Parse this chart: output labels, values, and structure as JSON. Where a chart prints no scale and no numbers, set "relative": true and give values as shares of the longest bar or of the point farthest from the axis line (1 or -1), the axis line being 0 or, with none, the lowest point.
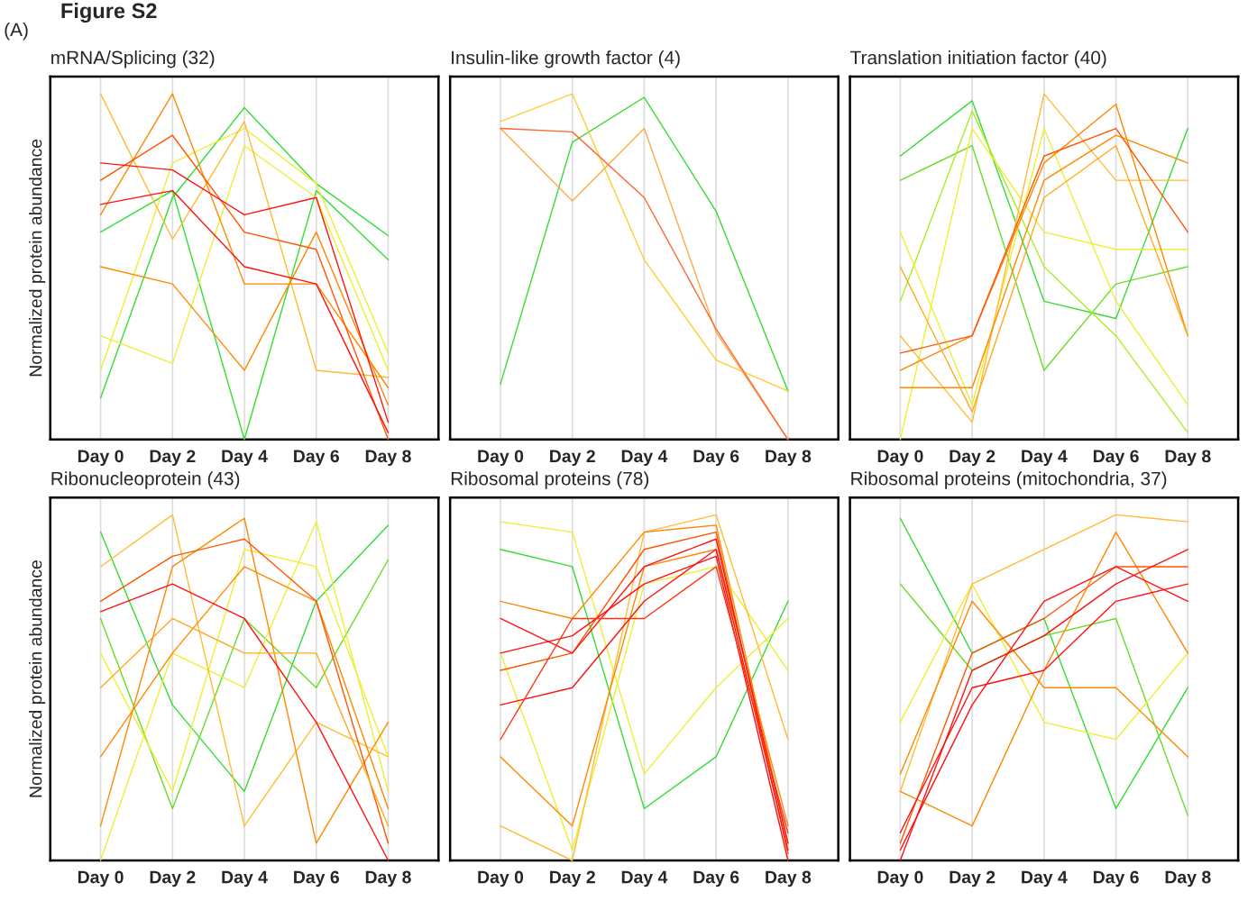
{
  "chart_data": [
    {
      "type": "line",
      "title": "mRNA/Splicing (32)",
      "ylabel": "Normalized protein abundance",
      "annotations": [
        "Figure S2",
        "(A)"
      ],
      "categories": [
        "Day 0",
        "Day 2",
        "Day 4",
        "Day 6",
        "Day 8"
      ],
      "relative": true,
      "grid": "x",
      "tick_labels": "x",
      "series": [
        {
          "color": "#33dd33",
          "values": [
            0.12,
            0.7,
            0.96,
            0.74,
            0.59
          ]
        },
        {
          "color": "#33dd33",
          "values": [
            0.6,
            0.72,
            0.0,
            0.72,
            0.52
          ]
        },
        {
          "color": "#eeee33",
          "values": [
            0.2,
            0.8,
            0.9,
            0.74,
            0.25
          ]
        },
        {
          "color": "#eeee33",
          "values": [
            0.3,
            0.22,
            0.85,
            0.7,
            0.2
          ]
        },
        {
          "color": "#ffbb33",
          "values": [
            1.0,
            0.58,
            0.92,
            0.2,
            0.18
          ]
        },
        {
          "color": "#ff8800",
          "values": [
            0.65,
            1.0,
            0.45,
            0.45,
            0.15
          ]
        },
        {
          "color": "#ff8800",
          "values": [
            0.5,
            0.45,
            0.2,
            0.6,
            0.1
          ]
        },
        {
          "color": "#ff5500",
          "values": [
            0.75,
            0.88,
            0.6,
            0.55,
            0.0
          ]
        },
        {
          "color": "#ff1111",
          "values": [
            0.8,
            0.78,
            0.65,
            0.7,
            0.05
          ]
        },
        {
          "color": "#ff1111",
          "values": [
            0.68,
            0.72,
            0.5,
            0.45,
            0.02
          ]
        }
      ]
    },
    {
      "type": "line",
      "title": "Insulin-like growth factor (4)",
      "categories": [
        "Day 0",
        "Day 2",
        "Day 4",
        "Day 6",
        "Day 8"
      ],
      "relative": true,
      "grid": "x",
      "tick_labels": "x",
      "series": [
        {
          "color": "#33dd33",
          "values": [
            0.16,
            0.86,
            0.99,
            0.66,
            0.14
          ]
        },
        {
          "color": "#ffcc33",
          "values": [
            0.92,
            1.0,
            0.52,
            0.23,
            0.14
          ]
        },
        {
          "color": "#ffaa44",
          "values": [
            0.9,
            0.69,
            0.9,
            0.31,
            0.0
          ]
        },
        {
          "color": "#ff6633",
          "values": [
            0.9,
            0.89,
            0.7,
            0.32,
            0.0
          ]
        }
      ]
    },
    {
      "type": "line",
      "title": "Translation initiation factor (40)",
      "categories": [
        "Day 0",
        "Day 2",
        "Day 4",
        "Day 6",
        "Day 8"
      ],
      "relative": true,
      "grid": "x",
      "tick_labels": "x",
      "series": [
        {
          "color": "#33dd33",
          "values": [
            0.82,
            0.98,
            0.4,
            0.35,
            0.9
          ]
        },
        {
          "color": "#66dd22",
          "values": [
            0.75,
            0.85,
            0.2,
            0.45,
            0.5
          ]
        },
        {
          "color": "#aaee22",
          "values": [
            0.4,
            0.95,
            0.5,
            0.3,
            0.02
          ]
        },
        {
          "color": "#eeee33",
          "values": [
            0.0,
            0.9,
            0.6,
            0.55,
            0.55
          ]
        },
        {
          "color": "#eeee33",
          "values": [
            0.6,
            0.1,
            0.9,
            0.4,
            0.1
          ]
        },
        {
          "color": "#ffbb33",
          "values": [
            0.3,
            0.05,
            1.0,
            0.75,
            0.75
          ]
        },
        {
          "color": "#ff8800",
          "values": [
            0.2,
            0.3,
            0.8,
            0.97,
            0.3
          ]
        },
        {
          "color": "#ff8800",
          "values": [
            0.15,
            0.15,
            0.75,
            0.88,
            0.8
          ]
        },
        {
          "color": "#ff5500",
          "values": [
            0.25,
            0.3,
            0.82,
            0.9,
            0.6
          ]
        },
        {
          "color": "#ffaa22",
          "values": [
            0.5,
            0.08,
            0.7,
            0.85,
            0.3
          ]
        }
      ]
    },
    {
      "type": "line",
      "title": "Ribonucleoprotein (43)",
      "ylabel": "Normalized protein abundance",
      "categories": [
        "Day 0",
        "Day 2",
        "Day 4",
        "Day 6",
        "Day 8"
      ],
      "relative": true,
      "grid": "x",
      "tick_labels": "x",
      "series": [
        {
          "color": "#33dd33",
          "values": [
            0.95,
            0.45,
            0.2,
            0.75,
            0.97
          ]
        },
        {
          "color": "#66dd22",
          "values": [
            0.7,
            0.15,
            0.7,
            0.5,
            0.87
          ]
        },
        {
          "color": "#eeee33",
          "values": [
            0.0,
            0.6,
            0.5,
            0.98,
            0.2
          ]
        },
        {
          "color": "#eeee33",
          "values": [
            0.6,
            0.2,
            0.9,
            0.85,
            0.3
          ]
        },
        {
          "color": "#ffbb33",
          "values": [
            0.85,
            1.0,
            0.1,
            0.4,
            0.3
          ]
        },
        {
          "color": "#ff8800",
          "values": [
            0.1,
            0.85,
            0.99,
            0.05,
            0.4
          ]
        },
        {
          "color": "#ff8800",
          "values": [
            0.3,
            0.6,
            0.85,
            0.75,
            0.15
          ]
        },
        {
          "color": "#ff5500",
          "values": [
            0.75,
            0.88,
            0.93,
            0.75,
            0.05
          ]
        },
        {
          "color": "#ff1111",
          "values": [
            0.72,
            0.8,
            0.7,
            0.4,
            0.0
          ]
        },
        {
          "color": "#ffaa22",
          "values": [
            0.5,
            0.7,
            0.6,
            0.6,
            0.1
          ]
        }
      ]
    },
    {
      "type": "line",
      "title": "Ribosomal proteins (78)",
      "categories": [
        "Day 0",
        "Day 2",
        "Day 4",
        "Day 6",
        "Day 8"
      ],
      "relative": true,
      "grid": "x",
      "tick_labels": "x",
      "series": [
        {
          "color": "#33dd33",
          "values": [
            0.9,
            0.85,
            0.15,
            0.3,
            0.75
          ]
        },
        {
          "color": "#eeee33",
          "values": [
            0.98,
            0.95,
            0.25,
            0.5,
            0.7
          ]
        },
        {
          "color": "#eeee33",
          "values": [
            0.6,
            0.03,
            0.8,
            0.85,
            0.55
          ]
        },
        {
          "color": "#ffbb33",
          "values": [
            0.1,
            0.0,
            0.95,
            1.0,
            0.35
          ]
        },
        {
          "color": "#ff8800",
          "values": [
            0.75,
            0.7,
            0.95,
            0.97,
            0.05
          ]
        },
        {
          "color": "#ff8800",
          "values": [
            0.3,
            0.1,
            0.85,
            0.9,
            0.1
          ]
        },
        {
          "color": "#ff5500",
          "values": [
            0.55,
            0.6,
            0.9,
            0.95,
            0.02
          ]
        },
        {
          "color": "#ff1111",
          "values": [
            0.6,
            0.65,
            0.8,
            0.88,
            0.0
          ]
        },
        {
          "color": "#ff1111",
          "values": [
            0.45,
            0.5,
            0.75,
            0.9,
            0.03
          ]
        },
        {
          "color": "#ff1111",
          "values": [
            0.7,
            0.6,
            0.85,
            0.93,
            0.05
          ]
        },
        {
          "color": "#ff3311",
          "values": [
            0.35,
            0.7,
            0.7,
            0.85,
            0.08
          ]
        }
      ]
    },
    {
      "type": "line",
      "title": "Ribosomal proteins (mitochondria, 37)",
      "categories": [
        "Day 0",
        "Day 2",
        "Day 4",
        "Day 6",
        "Day 8"
      ],
      "relative": true,
      "grid": "x",
      "tick_labels": "x",
      "series": [
        {
          "color": "#33dd33",
          "values": [
            0.99,
            0.6,
            0.7,
            0.15,
            0.5
          ]
        },
        {
          "color": "#66dd22",
          "values": [
            0.8,
            0.55,
            0.65,
            0.7,
            0.13
          ]
        },
        {
          "color": "#eeee33",
          "values": [
            0.4,
            0.8,
            0.4,
            0.35,
            0.6
          ]
        },
        {
          "color": "#ffbb33",
          "values": [
            0.2,
            0.8,
            0.9,
            1.0,
            0.98
          ]
        },
        {
          "color": "#ff8800",
          "values": [
            0.2,
            0.1,
            0.55,
            0.95,
            0.6
          ]
        },
        {
          "color": "#ff8800",
          "values": [
            0.25,
            0.75,
            0.5,
            0.5,
            0.3
          ]
        },
        {
          "color": "#ff5500",
          "values": [
            0.05,
            0.6,
            0.7,
            0.85,
            0.85
          ]
        },
        {
          "color": "#ff1111",
          "values": [
            0.0,
            0.55,
            0.65,
            0.8,
            0.9
          ]
        },
        {
          "color": "#ff1111",
          "values": [
            0.08,
            0.5,
            0.55,
            0.75,
            0.8
          ]
        },
        {
          "color": "#ff1111",
          "values": [
            0.03,
            0.45,
            0.75,
            0.85,
            0.75
          ]
        }
      ]
    }
  ]
}
